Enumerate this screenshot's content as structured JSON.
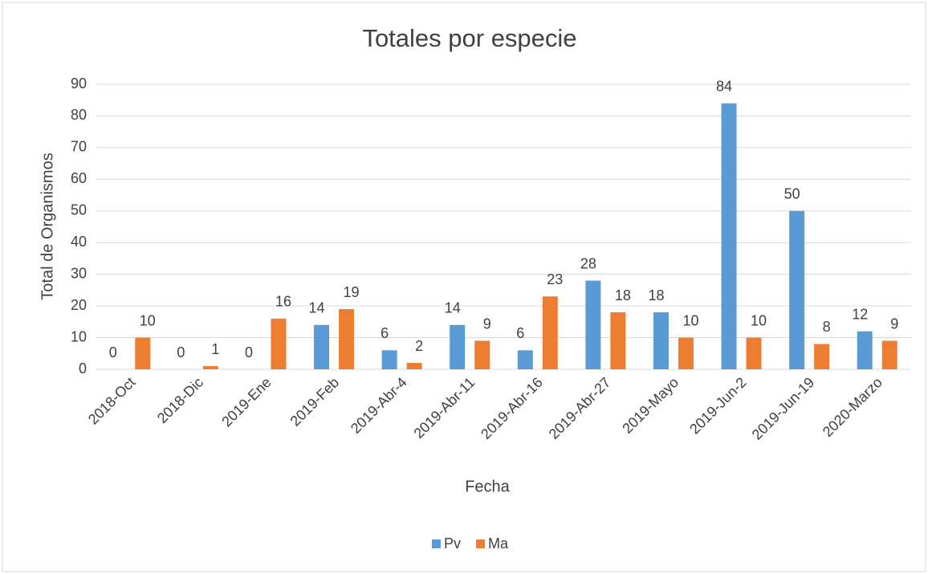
{
  "chart_data": {
    "type": "bar",
    "title": "Totales por especie",
    "x_label": "Fecha",
    "y_label": "Total de Organismos",
    "categories": [
      "2018-Oct",
      "2018-Dic",
      "2019-Ene",
      "2019-Feb",
      "2019-Abr-4",
      "2019-Abr-11",
      "2019-Abr-16",
      "2019-Abr-27",
      "2019-Mayo",
      "2019-Jun-2",
      "2019-Jun-19",
      "2020-Marzo"
    ],
    "series": [
      {
        "name": "Pv",
        "color": "#5b9bd5",
        "values": [
          0,
          0,
          0,
          14,
          6,
          14,
          6,
          28,
          18,
          84,
          50,
          12
        ]
      },
      {
        "name": "Ma",
        "color": "#ed7d31",
        "values": [
          10,
          1,
          16,
          19,
          2,
          9,
          23,
          18,
          10,
          10,
          8,
          9
        ]
      }
    ],
    "ylim": [
      0,
      90
    ],
    "yticks": [
      0,
      10,
      20,
      30,
      40,
      50,
      60,
      70,
      80,
      90
    ],
    "grid": true,
    "legend": "bottom"
  }
}
